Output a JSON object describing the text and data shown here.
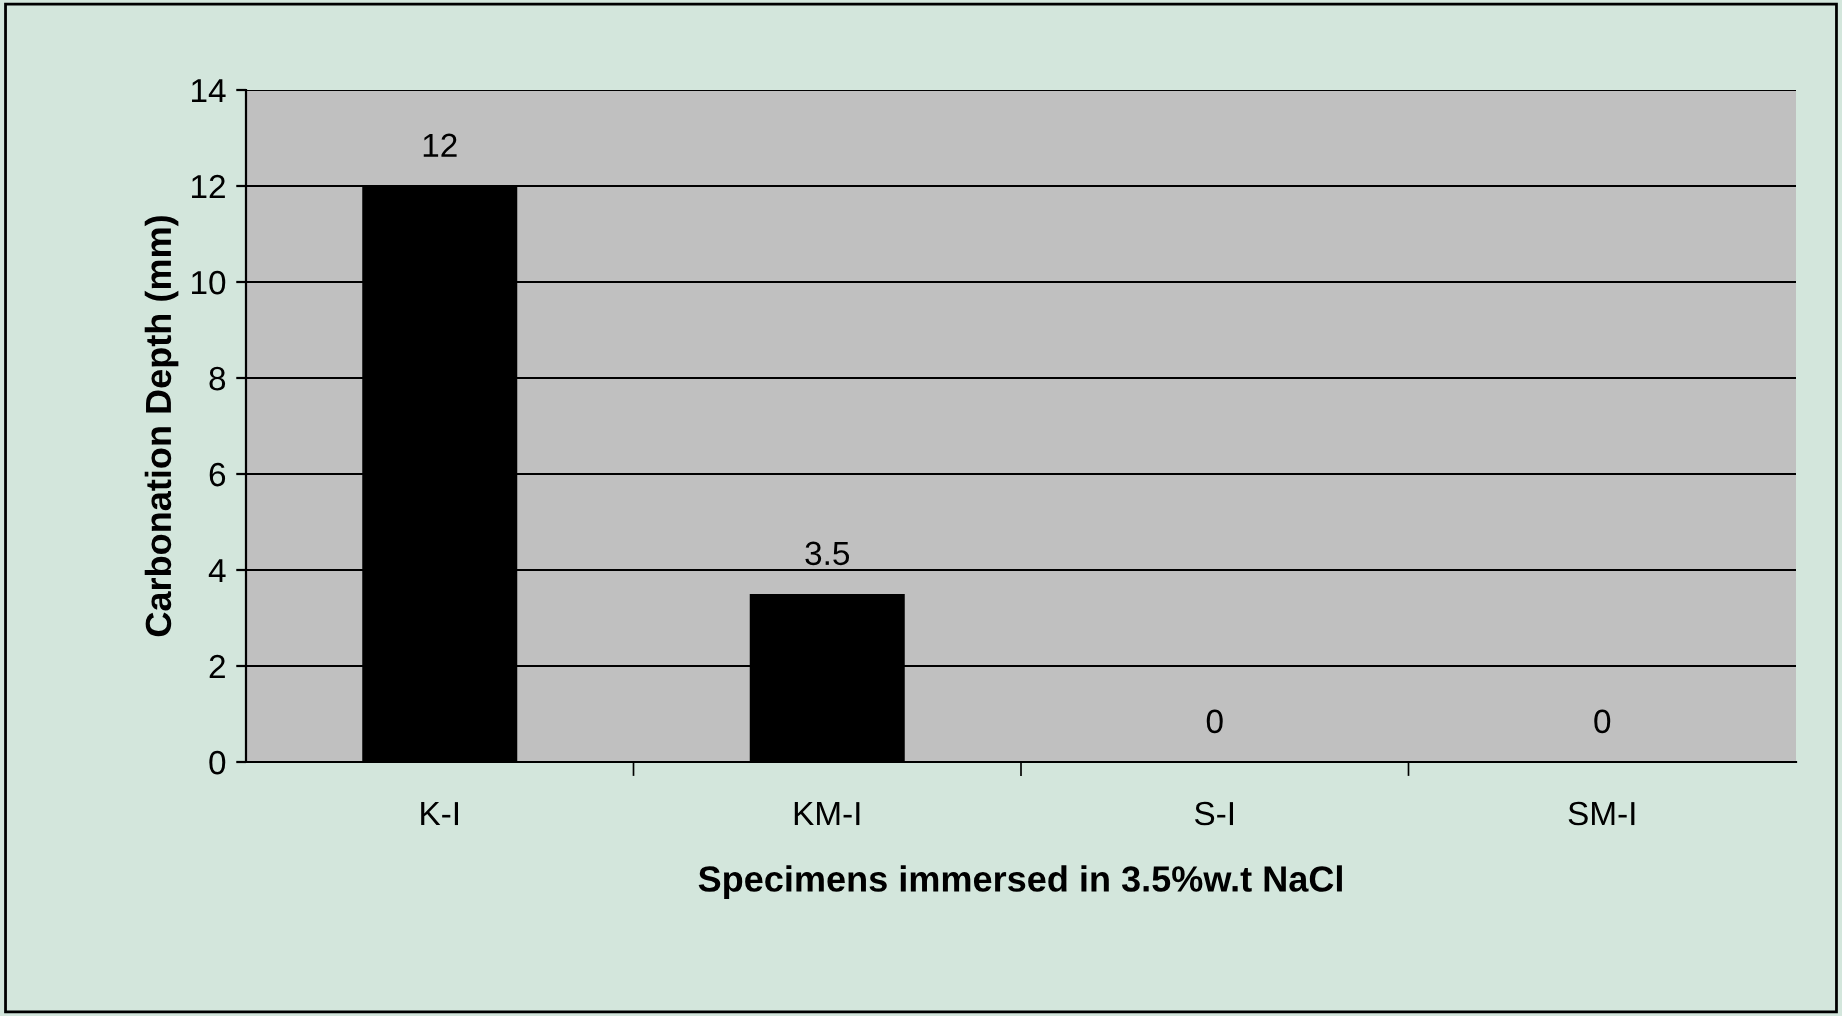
{
  "chart_data": {
    "type": "bar",
    "xlabel": "Specimens immersed in 3.5%w.t NaCl",
    "ylabel": "Carbonation Depth (mm)",
    "categories": [
      "K-I",
      "KM-I",
      "S-I",
      "SM-I"
    ],
    "values": [
      12,
      3.5,
      0,
      0
    ],
    "color": "#000000",
    "ylim": [
      0,
      14
    ],
    "yticks": [
      0,
      2,
      4,
      6,
      8,
      10,
      12,
      14
    ],
    "grid": "y",
    "data_labels": true,
    "legend": false
  }
}
